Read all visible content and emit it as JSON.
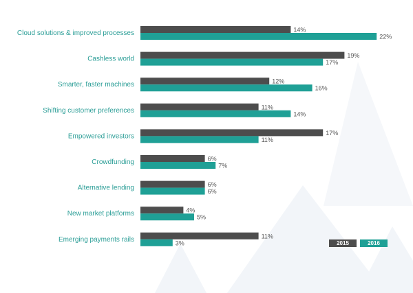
{
  "chart_data": {
    "type": "bar",
    "orientation": "horizontal",
    "categories": [
      "Cloud solutions & improved processes",
      "Cashless world",
      "Smarter, faster machines",
      "Shifting customer preferences",
      "Empowered investors",
      "Crowdfunding",
      "Alternative lending",
      "New market platforms",
      "Emerging payments rails"
    ],
    "series": [
      {
        "name": "2015",
        "color": "#4d4d4d",
        "values": [
          14,
          19,
          12,
          11,
          17,
          6,
          6,
          4,
          11
        ]
      },
      {
        "name": "2016",
        "color": "#1fa096",
        "values": [
          22,
          17,
          16,
          14,
          11,
          7,
          6,
          5,
          3
        ]
      }
    ],
    "value_suffix": "%",
    "xlim": [
      0,
      25
    ],
    "grid": false,
    "legend_position": "bottom-right"
  }
}
